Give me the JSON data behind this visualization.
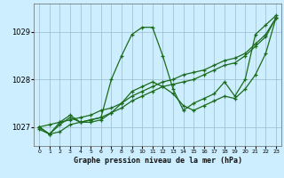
{
  "bg_color": "#cceeff",
  "grid_color": "#99bbcc",
  "line_color": "#1a6b1a",
  "xlabel": "Graphe pression niveau de la mer (hPa)",
  "xlim": [
    -0.5,
    23.5
  ],
  "ylim": [
    1026.6,
    1029.6
  ],
  "yticks": [
    1027,
    1028,
    1029
  ],
  "xticks": [
    0,
    1,
    2,
    3,
    4,
    5,
    6,
    7,
    8,
    9,
    10,
    11,
    12,
    13,
    14,
    15,
    16,
    17,
    18,
    19,
    20,
    21,
    22,
    23
  ],
  "series": [
    {
      "x": [
        0,
        1,
        2,
        3,
        4,
        5,
        6,
        7,
        8,
        9,
        10,
        11,
        12,
        13,
        14,
        15,
        16,
        17,
        18,
        19,
        20,
        21,
        22,
        23
      ],
      "y": [
        1027.0,
        1026.85,
        1027.05,
        1027.2,
        1027.1,
        1027.15,
        1027.2,
        1028.0,
        1028.5,
        1028.95,
        1029.1,
        1029.1,
        1028.5,
        1027.8,
        1027.35,
        1027.5,
        1027.6,
        1027.7,
        1027.95,
        1027.65,
        1028.0,
        1028.95,
        1029.15,
        1029.35
      ]
    },
    {
      "x": [
        0,
        1,
        2,
        3,
        4,
        5,
        6,
        7,
        8,
        9,
        10,
        11,
        12,
        13,
        14,
        15,
        16,
        17,
        18,
        19,
        20,
        21,
        22,
        23
      ],
      "y": [
        1027.0,
        1027.05,
        1027.1,
        1027.15,
        1027.2,
        1027.25,
        1027.35,
        1027.4,
        1027.5,
        1027.65,
        1027.75,
        1027.85,
        1027.95,
        1028.0,
        1028.1,
        1028.15,
        1028.2,
        1028.3,
        1028.4,
        1028.45,
        1028.55,
        1028.75,
        1028.95,
        1029.3
      ]
    },
    {
      "x": [
        0,
        1,
        2,
        3,
        4,
        5,
        6,
        7,
        8,
        9,
        10,
        11,
        12,
        13,
        14,
        15,
        16,
        17,
        18,
        19,
        20,
        21,
        22,
        23
      ],
      "y": [
        1026.95,
        1026.85,
        1026.9,
        1027.05,
        1027.1,
        1027.15,
        1027.2,
        1027.3,
        1027.4,
        1027.55,
        1027.65,
        1027.75,
        1027.85,
        1027.9,
        1027.95,
        1028.0,
        1028.1,
        1028.2,
        1028.3,
        1028.35,
        1028.5,
        1028.7,
        1028.9,
        1029.3
      ]
    },
    {
      "x": [
        0,
        1,
        2,
        3,
        4,
        5,
        6,
        7,
        8,
        9,
        10,
        11,
        12,
        13,
        14,
        15,
        16,
        17,
        18,
        19,
        20,
        21,
        22,
        23
      ],
      "y": [
        1027.0,
        1026.85,
        1027.1,
        1027.25,
        1027.1,
        1027.1,
        1027.15,
        1027.3,
        1027.5,
        1027.75,
        1027.85,
        1027.95,
        1027.85,
        1027.7,
        1027.45,
        1027.35,
        1027.45,
        1027.55,
        1027.65,
        1027.6,
        1027.8,
        1028.1,
        1028.55,
        1029.3
      ]
    }
  ]
}
